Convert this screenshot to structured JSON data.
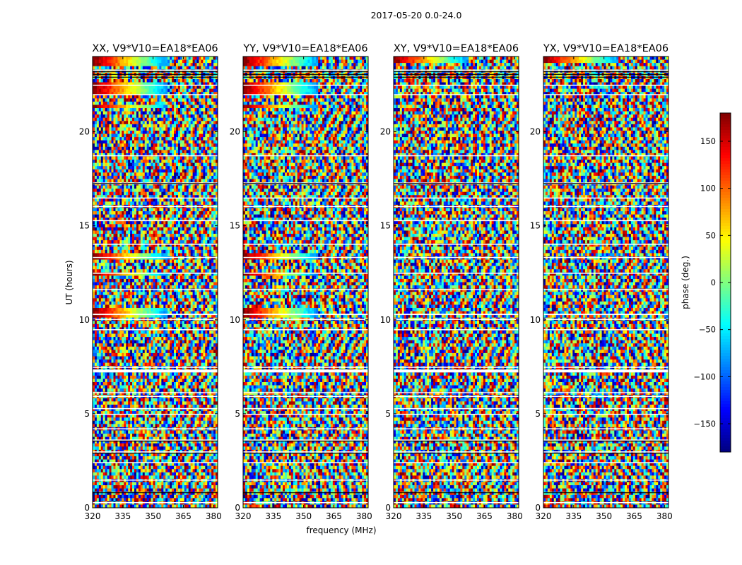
{
  "figure": {
    "suptitle": "2017-05-20 0.0-24.0"
  },
  "chart_data": {
    "type": "heatmap",
    "quantity": "visibility phase vs frequency and time",
    "xlabel": "frequency (MHz)",
    "ylabel": "UT (hours)",
    "xlim": [
      320,
      382
    ],
    "ylim": [
      0,
      24
    ],
    "x_ticks": [
      320,
      335,
      350,
      365,
      380
    ],
    "y_ticks": [
      0,
      5,
      10,
      15,
      20
    ],
    "panels": [
      {
        "title": "XX, V9*V10=EA18*EA06",
        "polarization": "XX"
      },
      {
        "title": "YY, V9*V10=EA18*EA06",
        "polarization": "YY"
      },
      {
        "title": "XY, V9*V10=EA18*EA06",
        "polarization": "XY"
      },
      {
        "title": "YX, V9*V10=EA18*EA06",
        "polarization": "YX"
      }
    ],
    "colorbar": {
      "label": "phase (deg.)",
      "range": [
        -180,
        180
      ],
      "ticks": [
        -150,
        -100,
        -50,
        0,
        50,
        100,
        150
      ],
      "colormap": "jet"
    },
    "flagged_gaps_ut_hours": [
      [
        0.25,
        0.3
      ],
      [
        1.45,
        1.5
      ],
      [
        2.38,
        2.43
      ],
      [
        2.95,
        3.0
      ],
      [
        3.6,
        3.63
      ],
      [
        4.2,
        4.23
      ],
      [
        4.95,
        5.0
      ],
      [
        5.25,
        5.3
      ],
      [
        5.9,
        5.95
      ],
      [
        6.1,
        6.15
      ],
      [
        7.2,
        7.35
      ],
      [
        7.45,
        7.5
      ],
      [
        9.45,
        9.5
      ],
      [
        10.0,
        10.05
      ],
      [
        10.25,
        10.32
      ],
      [
        11.6,
        11.63
      ],
      [
        12.45,
        12.5
      ],
      [
        13.3,
        13.34
      ],
      [
        14.0,
        14.04
      ],
      [
        15.25,
        15.3
      ],
      [
        16.0,
        16.05
      ],
      [
        16.45,
        16.5
      ],
      [
        17.2,
        17.3
      ],
      [
        18.7,
        18.75
      ],
      [
        21.95,
        22.0
      ],
      [
        22.45,
        22.5
      ],
      [
        23.25,
        23.3
      ]
    ],
    "coherent_rows_ut_hours": {
      "XX": [
        [
          10.2,
          10.55
        ],
        [
          12.4,
          12.55
        ],
        [
          13.25,
          13.5
        ],
        [
          21.3,
          21.45
        ],
        [
          22.0,
          22.6
        ],
        [
          23.45,
          24.0
        ]
      ],
      "YY": [
        [
          10.2,
          10.55
        ],
        [
          12.4,
          12.55
        ],
        [
          13.25,
          13.5
        ],
        [
          21.3,
          21.45
        ],
        [
          22.0,
          22.6
        ],
        [
          23.45,
          24.0
        ]
      ],
      "XY": [
        [
          23.6,
          24.0
        ]
      ],
      "YX": [
        [
          23.6,
          24.0
        ]
      ]
    }
  }
}
